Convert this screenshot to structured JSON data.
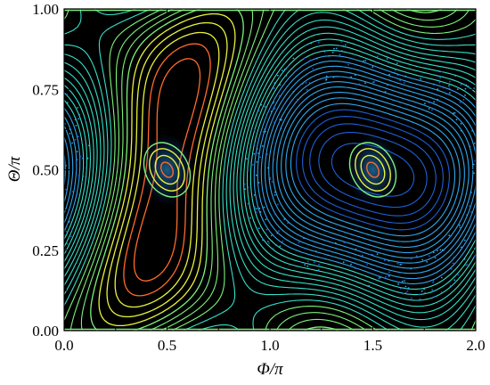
{
  "chart_data": {
    "type": "scatter",
    "title": "",
    "xlabel": "Φ/π",
    "ylabel": "Θ/π",
    "xlim": [
      0.0,
      2.0
    ],
    "ylim": [
      0.0,
      1.0
    ],
    "x_ticks": [
      "0.0",
      "0.5",
      "1.0",
      "1.5",
      "2.0"
    ],
    "x_tick_values": [
      0.0,
      0.5,
      1.0,
      1.5,
      2.0
    ],
    "y_ticks": [
      "0.00",
      "0.25",
      "0.50",
      "0.75",
      "1.00"
    ],
    "y_tick_values": [
      0.0,
      0.25,
      0.5,
      0.75,
      1.0
    ],
    "grid": false,
    "background_color": "#000000",
    "colormap": [
      "#2a0a7a",
      "#1e5fd6",
      "#2fa8ee",
      "#35e0c8",
      "#7ef27a",
      "#e8f23a",
      "#ff6a2a"
    ],
    "island_centers": [
      {
        "x": 0.5,
        "y": 0.5
      },
      {
        "x": 1.5,
        "y": 0.5
      }
    ],
    "edge_lines_y": [
      0.0,
      1.0
    ]
  }
}
